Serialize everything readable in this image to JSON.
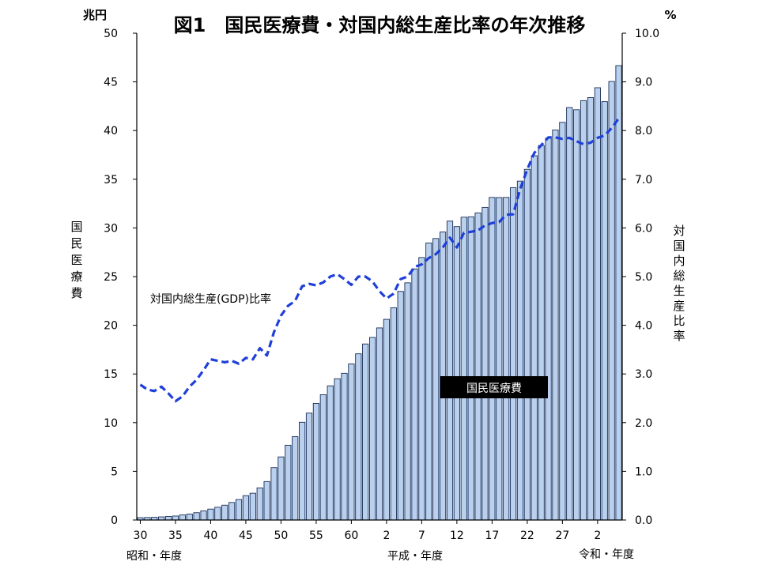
{
  "chart_data": {
    "type": "bar",
    "title": "図1　国民医療費・対国内総生産比率の年次推移",
    "y_left_unit": "兆円",
    "y_right_unit": "%",
    "y_left_label": "国民医療費",
    "y_right_label": "対国内総生産比率",
    "ylim_left": [
      0,
      50
    ],
    "ylim_right": [
      0,
      10
    ],
    "y_left_ticks": [
      "0",
      "5",
      "10",
      "15",
      "20",
      "25",
      "30",
      "35",
      "40",
      "45",
      "50"
    ],
    "y_right_ticks": [
      "0.0",
      "1.0",
      "2.0",
      "3.0",
      "4.0",
      "5.0",
      "6.0",
      "7.0",
      "8.0",
      "9.0",
      "10.0"
    ],
    "x_tick_labels": [
      {
        "index": 0,
        "label": "30"
      },
      {
        "index": 5,
        "label": "35"
      },
      {
        "index": 10,
        "label": "40"
      },
      {
        "index": 15,
        "label": "45"
      },
      {
        "index": 20,
        "label": "50"
      },
      {
        "index": 25,
        "label": "55"
      },
      {
        "index": 30,
        "label": "60"
      },
      {
        "index": 35,
        "label": "2"
      },
      {
        "index": 40,
        "label": "7"
      },
      {
        "index": 45,
        "label": "12"
      },
      {
        "index": 50,
        "label": "17"
      },
      {
        "index": 55,
        "label": "22"
      },
      {
        "index": 60,
        "label": "27"
      },
      {
        "index": 65,
        "label": "2"
      }
    ],
    "era_labels": [
      "昭和・年度",
      "平成・年度",
      "令和・年度"
    ],
    "grid": false,
    "series": [
      {
        "name": "国民医療費",
        "type": "bar",
        "axis": "left",
        "values": [
          0.24,
          0.26,
          0.28,
          0.32,
          0.37,
          0.41,
          0.52,
          0.61,
          0.75,
          0.94,
          1.12,
          1.31,
          1.52,
          1.8,
          2.1,
          2.5,
          2.75,
          3.3,
          3.95,
          5.38,
          6.48,
          7.68,
          8.56,
          10.04,
          10.98,
          11.98,
          12.87,
          13.78,
          14.51,
          15.07,
          16.03,
          17.07,
          18.08,
          18.75,
          19.73,
          20.61,
          21.8,
          23.48,
          24.36,
          25.79,
          26.96,
          28.45,
          28.91,
          29.58,
          30.7,
          30.14,
          31.1,
          31.14,
          31.54,
          32.11,
          33.13,
          33.12,
          33.13,
          34.13,
          34.81,
          36.02,
          37.42,
          38.46,
          39.21,
          40.06,
          40.84,
          42.36,
          42.14,
          43.07,
          43.39,
          44.4,
          42.97,
          45.04,
          46.67
        ],
        "label": "国民医療費"
      },
      {
        "name": "対国内総生産(GDP)比率",
        "type": "line",
        "axis": "right",
        "style": "dashed",
        "color": "#1f3fd9",
        "values": [
          2.78,
          2.68,
          2.65,
          2.74,
          2.6,
          2.44,
          2.54,
          2.74,
          2.88,
          3.08,
          3.3,
          3.27,
          3.24,
          3.27,
          3.21,
          3.33,
          3.3,
          3.53,
          3.38,
          3.86,
          4.2,
          4.4,
          4.5,
          4.8,
          4.85,
          4.82,
          4.88,
          5.0,
          5.05,
          4.95,
          4.83,
          5.0,
          5.0,
          4.9,
          4.7,
          4.55,
          4.65,
          4.95,
          5.0,
          5.2,
          5.25,
          5.38,
          5.46,
          5.6,
          5.8,
          5.6,
          5.9,
          5.92,
          5.95,
          6.05,
          6.1,
          6.12,
          6.27,
          6.28,
          6.8,
          7.2,
          7.54,
          7.7,
          7.86,
          7.86,
          7.83,
          7.85,
          7.78,
          7.72,
          7.75,
          7.85,
          7.9,
          8.05,
          8.25
        ],
        "label": "対国内総生産(GDP)比率"
      }
    ],
    "colors": {
      "bar_fill": "#b9d1ef",
      "bar_stroke": "#1a2d55",
      "line": "#1f3fd9",
      "label_bg": "#000000",
      "label_text": "#ffffff"
    }
  }
}
